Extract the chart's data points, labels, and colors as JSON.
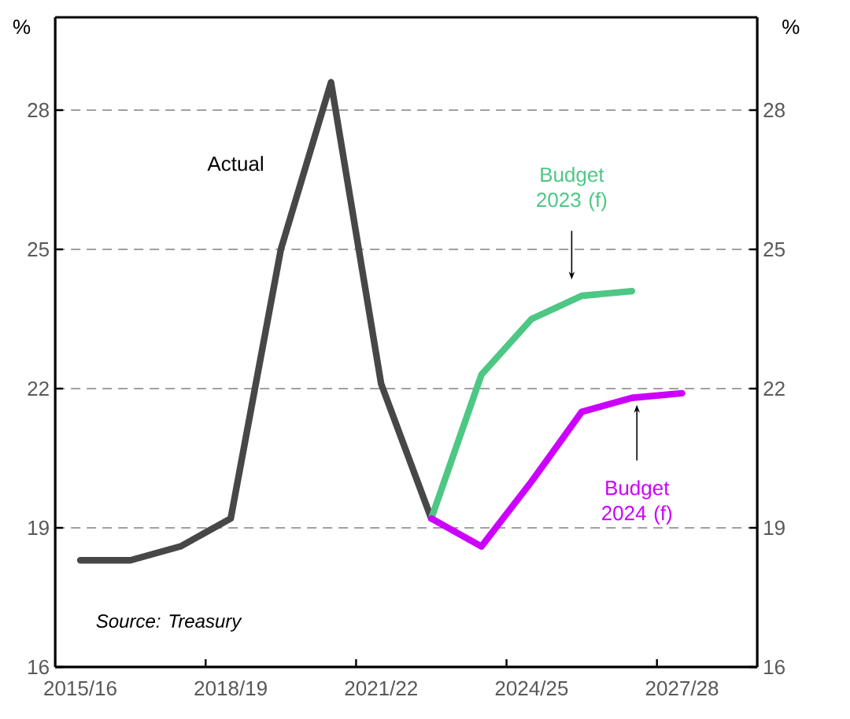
{
  "chart_data": {
    "type": "line",
    "ylabel": "%",
    "y2label": "%",
    "categories": [
      "2015/16",
      null,
      null,
      "2018/19",
      null,
      null,
      "2021/22",
      null,
      null,
      "2024/25",
      null,
      null,
      "2027/28",
      null
    ],
    "series": [
      {
        "name": "Actual",
        "color": "#474747",
        "values": [
          18.3,
          18.3,
          18.6,
          19.2,
          25.0,
          28.6,
          22.1,
          19.2,
          null,
          null,
          null,
          null,
          null,
          null
        ]
      },
      {
        "name": "Budget 2023 (f)",
        "color": "#4dc784",
        "values": [
          null,
          null,
          null,
          null,
          null,
          null,
          null,
          19.2,
          22.3,
          23.5,
          24.0,
          24.1,
          null,
          null
        ]
      },
      {
        "name": "Budget 2024 (f)",
        "color": "#cc00ff",
        "values": [
          null,
          null,
          null,
          null,
          null,
          null,
          null,
          19.2,
          18.6,
          20.0,
          21.5,
          21.8,
          21.9,
          null
        ]
      }
    ],
    "ylim": [
      16,
      30
    ],
    "yticks": [
      16,
      19,
      22,
      25,
      28
    ],
    "y2lim": [
      16,
      30
    ],
    "y2ticks": [
      16,
      19,
      22,
      25,
      28
    ],
    "grid": "y",
    "line_style": "solid",
    "marker": "none",
    "annotations": [
      "Source: *Treasury*"
    ]
  }
}
